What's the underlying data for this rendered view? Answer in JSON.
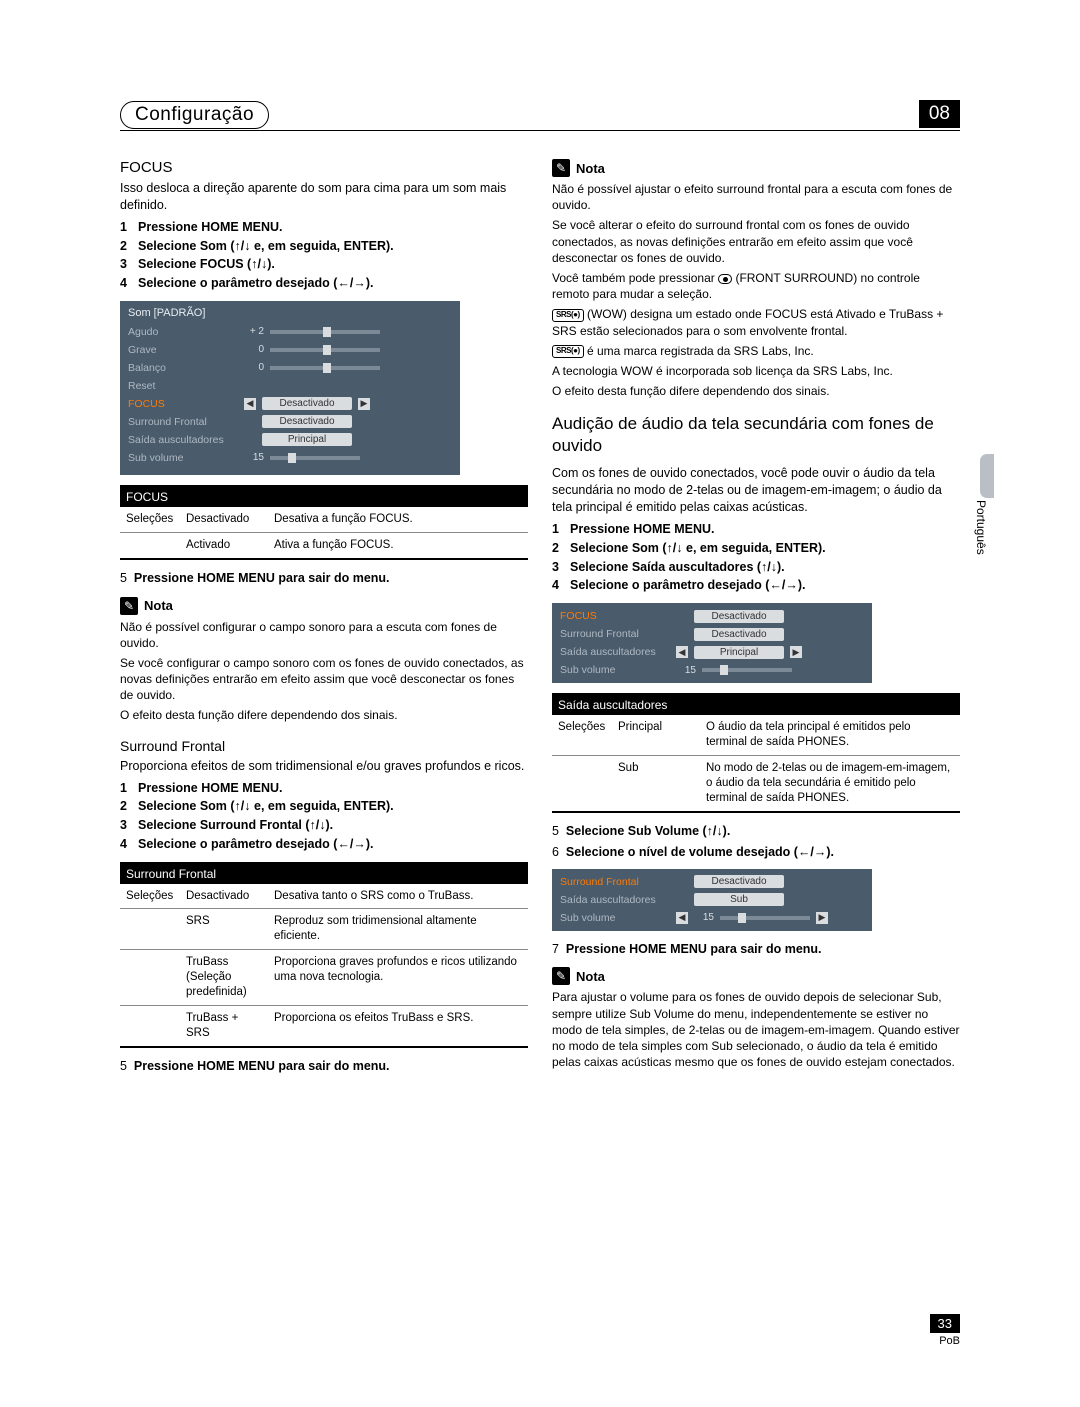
{
  "header": {
    "title": "Configuração",
    "chapter": "08"
  },
  "sideLabel": "Português",
  "pageNumber": "33",
  "pageCode": "PoB",
  "left": {
    "focus": {
      "title": "FOCUS",
      "intro": "Isso desloca a direção aparente do som para cima para um som mais definido.",
      "steps": [
        "Pressione HOME MENU.",
        "Selecione Som (↑/↓ e, em seguida, ENTER).",
        "Selecione FOCUS (↑/↓).",
        "Selecione o parâmetro desejado (←/→)."
      ],
      "osd": {
        "title": "Som [PADRÃO]",
        "rows": [
          {
            "label": "Agudo",
            "type": "slider",
            "num": "+ 2"
          },
          {
            "label": "Grave",
            "type": "slider",
            "num": "0"
          },
          {
            "label": "Balanço",
            "type": "slider",
            "num": "0"
          },
          {
            "label": "Reset",
            "type": "blank"
          },
          {
            "label": "FOCUS",
            "type": "select",
            "value": "Desactivado",
            "hl": true
          },
          {
            "label": "Surround Frontal",
            "type": "box",
            "value": "Desactivado"
          },
          {
            "label": "Saída auscultadores",
            "type": "box",
            "value": "Principal"
          },
          {
            "label": "Sub volume",
            "type": "volbar",
            "value": "15"
          }
        ]
      },
      "table": {
        "head": "FOCUS",
        "c1": "Seleções",
        "rows": [
          {
            "opt": "Desactivado",
            "desc": "Desativa a função FOCUS."
          },
          {
            "opt": "Activado",
            "desc": "Ativa a função FOCUS."
          }
        ]
      },
      "step5": "Pressione HOME MENU para sair do menu.",
      "note": {
        "label": "Nota",
        "paras": [
          "Não é possível configurar o campo sonoro para a escuta com fones de ouvido.",
          "Se você configurar o campo sonoro com os fones de ouvido conectados, as novas definições entrarão em efeito assim que você desconectar os fones de ouvido.",
          "O efeito desta função difere dependendo dos sinais."
        ]
      }
    },
    "surround": {
      "title": "Surround Frontal",
      "intro": "Proporciona efeitos de som tridimensional e/ou graves profundos e ricos.",
      "steps": [
        "Pressione HOME MENU.",
        "Selecione Som (↑/↓ e, em seguida, ENTER).",
        "Selecione Surround Frontal (↑/↓).",
        "Selecione o parâmetro desejado (←/→)."
      ],
      "table": {
        "head": "Surround Frontal",
        "c1": "Seleções",
        "rows": [
          {
            "opt": "Desactivado",
            "desc": "Desativa tanto o SRS como o TruBass."
          },
          {
            "opt": "SRS",
            "desc": "Reproduz som tridimensional altamente eficiente."
          },
          {
            "opt": "TruBass (Seleção predefinida)",
            "desc": "Proporciona graves profundos e ricos utilizando uma nova tecnologia."
          },
          {
            "opt": "TruBass + SRS",
            "desc": "Proporciona os efeitos TruBass e SRS."
          }
        ]
      },
      "step5": "Pressione HOME MENU para sair do menu."
    }
  },
  "right": {
    "note1": {
      "label": "Nota",
      "paras": [
        "Não é possível ajustar o efeito surround frontal para a escuta com fones de ouvido.",
        "Se você alterar o efeito do surround frontal com os fones de ouvido conectados, as novas definições entrarão em efeito assim que você desconectar os fones de ouvido.",
        "Você também pode pressionar ● (FRONT SURROUND) no controle remoto para mudar a seleção.",
        "(WOW) designa um estado onde FOCUS está Ativado e TruBass + SRS estão selecionados para o som envolvente frontal.",
        "é uma marca registrada da SRS Labs, Inc.",
        "A tecnologia WOW é incorporada sob licença da SRS Labs, Inc.",
        "O efeito desta função difere dependendo dos sinais."
      ]
    },
    "audicao": {
      "title": "Audição de áudio da tela secundária com fones de ouvido",
      "intro": "Com os fones de ouvido conectados, você pode ouvir o áudio da tela secundária no modo de 2-telas ou de imagem-em-imagem; o áudio da tela principal é emitido pelas caixas acústicas.",
      "steps": [
        "Pressione HOME MENU.",
        "Selecione Som (↑/↓ e, em seguida, ENTER).",
        "Selecione Saída auscultadores (↑/↓).",
        "Selecione o parâmetro desejado (←/→)."
      ],
      "osd1": {
        "rows": [
          {
            "label": "FOCUS",
            "type": "box",
            "value": "Desactivado",
            "hl": true
          },
          {
            "label": "Surround Frontal",
            "type": "box",
            "value": "Desactivado"
          },
          {
            "label": "Saída auscultadores",
            "type": "select",
            "value": "Principal"
          },
          {
            "label": "Sub volume",
            "type": "volbar",
            "value": "15"
          }
        ]
      },
      "table": {
        "head": "Saída auscultadores",
        "c1": "Seleções",
        "rows": [
          {
            "opt": "Principal",
            "desc": "O áudio da tela principal é emitidos pelo terminal de saída PHONES."
          },
          {
            "opt": "Sub",
            "desc": "No modo de 2-telas ou de imagem-em-imagem, o áudio da tela secundária é emitido pelo terminal de saída PHONES."
          }
        ]
      },
      "step5": "Selecione Sub Volume (↑/↓).",
      "step6": "Selecione o nível de volume desejado (←/→).",
      "osd2": {
        "rows": [
          {
            "label": "Surround Frontal",
            "type": "box",
            "value": "Desactivado",
            "hl": true
          },
          {
            "label": "Saída auscultadores",
            "type": "box",
            "value": "Sub"
          },
          {
            "label": "Sub volume",
            "type": "volsel",
            "value": "15"
          }
        ]
      },
      "step7": "Pressione HOME MENU para sair do menu.",
      "note": {
        "label": "Nota",
        "para": "Para ajustar o volume para os fones de ouvido depois de selecionar Sub, sempre utilize Sub Volume do menu, independentemente se estiver no modo de tela simples, de 2-telas ou de imagem-em-imagem. Quando estiver no modo de tela simples com Sub selecionado, o áudio da tela é emitido pelas caixas acústicas mesmo que os fones de ouvido estejam conectados."
      }
    }
  }
}
